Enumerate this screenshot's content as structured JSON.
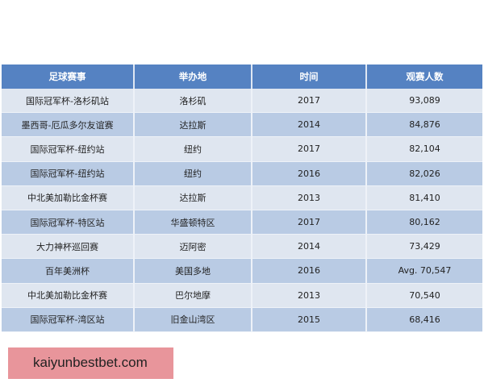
{
  "table": {
    "headers": [
      "足球赛事",
      "举办地",
      "时间",
      "观赛人数"
    ],
    "rows": [
      [
        "国际冠军杯-洛杉矶站",
        "洛杉矶",
        "2017",
        "93,089"
      ],
      [
        "墨西哥-厄瓜多尔友谊赛",
        "达拉斯",
        "2014",
        "84,876"
      ],
      [
        "国际冠军杯-纽约站",
        "纽约",
        "2017",
        "82,104"
      ],
      [
        "国际冠军杯-纽约站",
        "纽约",
        "2016",
        "82,026"
      ],
      [
        "中北美加勒比金杯赛",
        "达拉斯",
        "2013",
        "81,410"
      ],
      [
        "国际冠军杯-特区站",
        "华盛顿特区",
        "2017",
        "80,162"
      ],
      [
        "大力神杯巡回赛",
        "迈阿密",
        "2014",
        "73,429"
      ],
      [
        "百年美洲杯",
        "美国多地",
        "2016",
        "Avg. 70,547"
      ],
      [
        "中北美加勒比金杯赛",
        "巴尔地摩",
        "2013",
        "70,540"
      ],
      [
        "国际冠军杯-湾区站",
        "旧金山湾区",
        "2015",
        "68,416"
      ]
    ]
  },
  "promo": {
    "label": "kaiyunbestbet.com"
  },
  "colors": {
    "header": "#5582c2",
    "row_light": "#dfe6f0",
    "row_dark": "#b9cbe4",
    "promo_bg": "#e8959b"
  }
}
